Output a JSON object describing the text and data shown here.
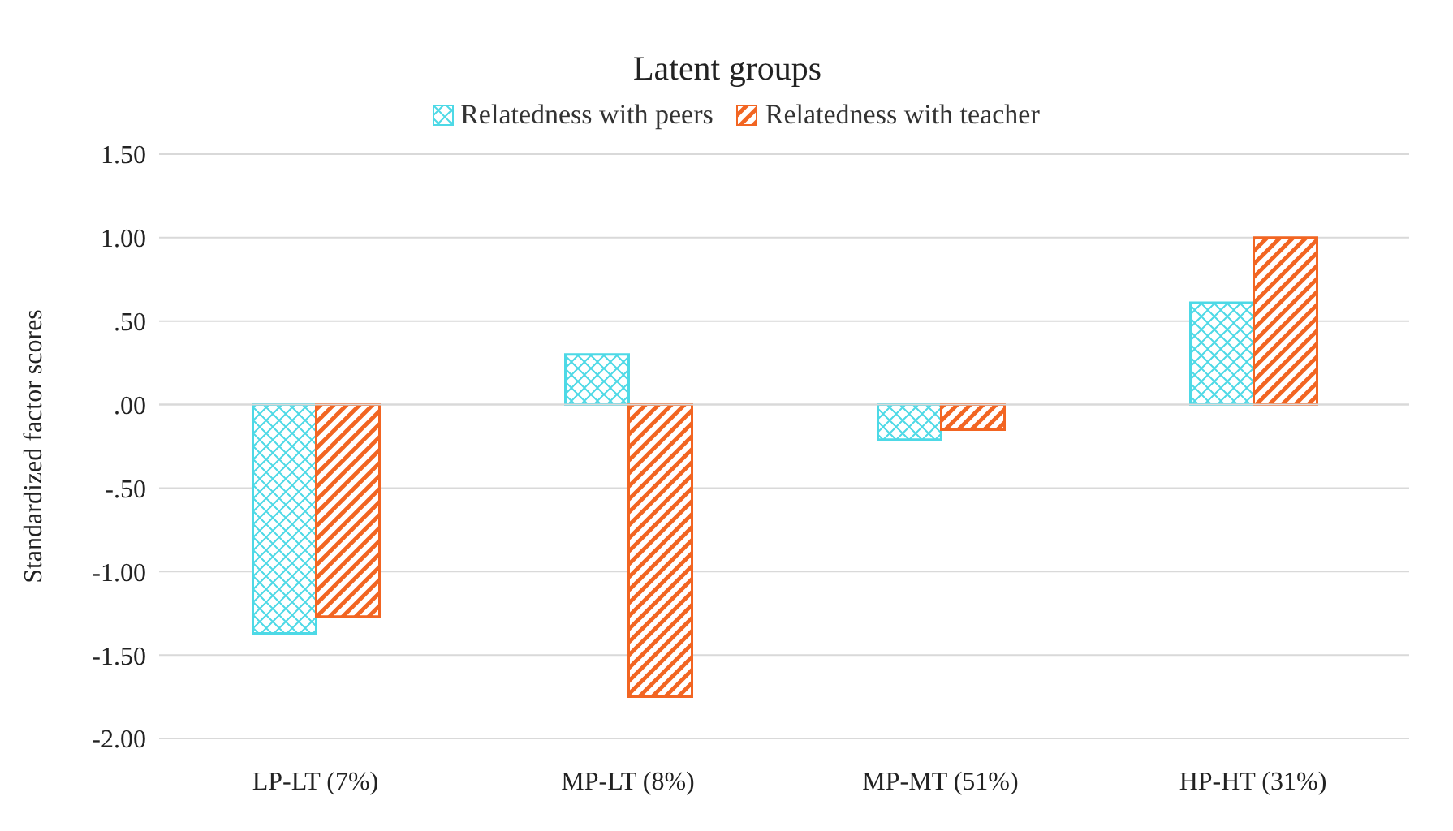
{
  "chart_data": {
    "type": "bar",
    "title": "Latent groups",
    "ylabel": "Standardized factor scores",
    "categories": [
      "LP-LT (7%)",
      "MP-LT (8%)",
      "MP-MT (51%)",
      "HP-HT (31%)"
    ],
    "series": [
      {
        "name": "Relatedness with peers",
        "color": "#4dd9e6",
        "values": [
          -1.37,
          0.3,
          -0.21,
          0.61
        ]
      },
      {
        "name": "Relatedness with teacher",
        "color": "#f26522",
        "values": [
          -1.27,
          -1.75,
          -0.15,
          1.0
        ]
      }
    ],
    "ylim": [
      -2.0,
      1.5
    ],
    "yticks": [
      {
        "value": -2.0,
        "label": "-2.00"
      },
      {
        "value": -1.5,
        "label": "-1.50"
      },
      {
        "value": -1.0,
        "label": "-1.00"
      },
      {
        "value": -0.5,
        "label": "-.50"
      },
      {
        "value": 0,
        "label": ".00"
      },
      {
        "value": 0.5,
        "label": ".50"
      },
      {
        "value": 1.0,
        "label": "1.00"
      },
      {
        "value": 1.5,
        "label": "1.50"
      }
    ],
    "grid": "y",
    "legend": "top"
  }
}
